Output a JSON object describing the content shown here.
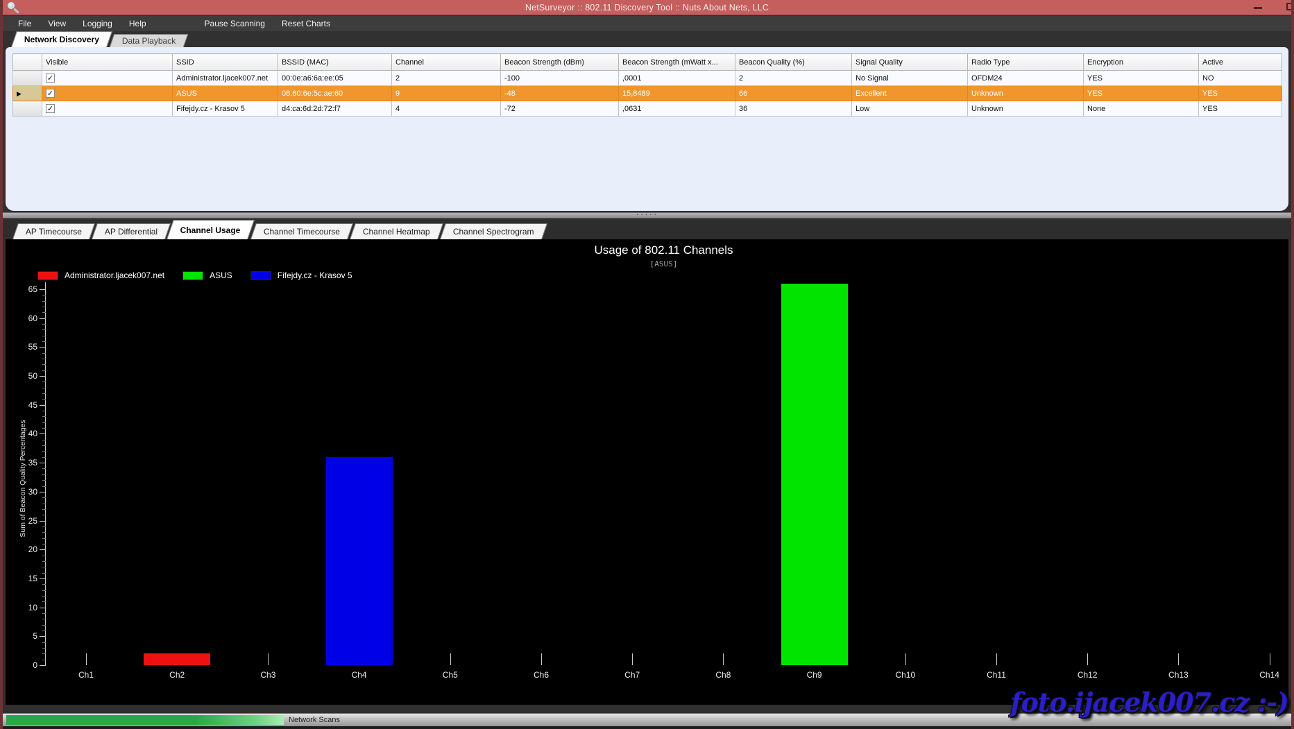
{
  "window": {
    "title": "NetSurveyor :: 802.11 Discovery Tool :: Nuts About Nets, LLC",
    "minimize_glyph": "minimize",
    "maximize_glyph": "restore"
  },
  "icons": {
    "app_icon": "magnifier-icon",
    "row_selector": "▶",
    "checkbox_check": "✓",
    "splitter_dots": "·····"
  },
  "menu": {
    "items": [
      "File",
      "View",
      "Logging",
      "Help"
    ],
    "actions": [
      "Pause Scanning",
      "Reset Charts"
    ]
  },
  "main_tabs": [
    {
      "label": "Network Discovery",
      "active": true
    },
    {
      "label": "Data Playback",
      "active": false
    }
  ],
  "table": {
    "columns": [
      "Visible",
      "SSID",
      "BSSID (MAC)",
      "Channel",
      "Beacon Strength (dBm)",
      "Beacon Strength (mWatt x...",
      "Beacon Quality (%)",
      "Signal Quality",
      "Radio Type",
      "Encryption",
      "Active"
    ],
    "rows": [
      {
        "selected": false,
        "visible": true,
        "ssid": "Administrator.ljacek007.net",
        "bssid": "00:0e:a6:6a:ee:05",
        "channel": "2",
        "beacon_dbm": "-100",
        "beacon_mwatt": ",0001",
        "beacon_quality": "2",
        "signal_quality": "No Signal",
        "radio_type": "OFDM24",
        "encryption": "YES",
        "active": "NO"
      },
      {
        "selected": true,
        "visible": true,
        "ssid": "ASUS",
        "bssid": "08:60:6e:5c:ae:60",
        "channel": "9",
        "beacon_dbm": "-48",
        "beacon_mwatt": "15,8489",
        "beacon_quality": "66",
        "signal_quality": "Excellent",
        "radio_type": "Unknown",
        "encryption": "YES",
        "active": "YES"
      },
      {
        "selected": false,
        "visible": true,
        "ssid": "Fifejdy.cz - Krasov 5",
        "bssid": "d4:ca:6d:2d:72:f7",
        "channel": "4",
        "beacon_dbm": "-72",
        "beacon_mwatt": ",0631",
        "beacon_quality": "36",
        "signal_quality": "Low",
        "radio_type": "Unknown",
        "encryption": "None",
        "active": "YES"
      }
    ]
  },
  "chart_tabs": [
    {
      "label": "AP Timecourse",
      "active": false
    },
    {
      "label": "AP Differential",
      "active": false
    },
    {
      "label": "Channel Usage",
      "active": true
    },
    {
      "label": "Channel Timecourse",
      "active": false
    },
    {
      "label": "Channel Heatmap",
      "active": false
    },
    {
      "label": "Channel Spectrogram",
      "active": false
    }
  ],
  "chart_data": {
    "type": "bar",
    "title": "Usage of 802.11 Channels",
    "subtitle": "[ASUS]",
    "xlabel": "",
    "ylabel": "Sum of Beacon Quality Percentages",
    "categories": [
      "Ch1",
      "Ch2",
      "Ch3",
      "Ch4",
      "Ch5",
      "Ch6",
      "Ch7",
      "Ch8",
      "Ch9",
      "Ch10",
      "Ch11",
      "Ch12",
      "Ch13",
      "Ch14"
    ],
    "values_by_channel": [
      0,
      2,
      0,
      36,
      0,
      0,
      0,
      0,
      66,
      0,
      0,
      0,
      0,
      0
    ],
    "series": [
      {
        "name": "Administrator.ljacek007.net",
        "color": "#ee1111",
        "channel": "Ch2",
        "value": 2
      },
      {
        "name": "ASUS",
        "color": "#00e400",
        "channel": "Ch9",
        "value": 66
      },
      {
        "name": "Fifejdy.cz - Krasov 5",
        "color": "#0000e6",
        "channel": "Ch4",
        "value": 36
      }
    ],
    "ylim": [
      0,
      65
    ],
    "y_major_step": 5,
    "y_minor_step": 1,
    "grid": false,
    "legend_position": "top-left",
    "background": "#000000"
  },
  "status_bar": {
    "label": "Network Scans",
    "progress_color": "#27a746"
  },
  "watermark": {
    "text": "foto.ijacek007.cz :-)",
    "color": "#2a1ec9"
  },
  "colors": {
    "titlebar": "#c45f5e",
    "selected_row": "#f0962d",
    "menu_bg": "#3d3d3d",
    "window_border": "#6b3333"
  }
}
